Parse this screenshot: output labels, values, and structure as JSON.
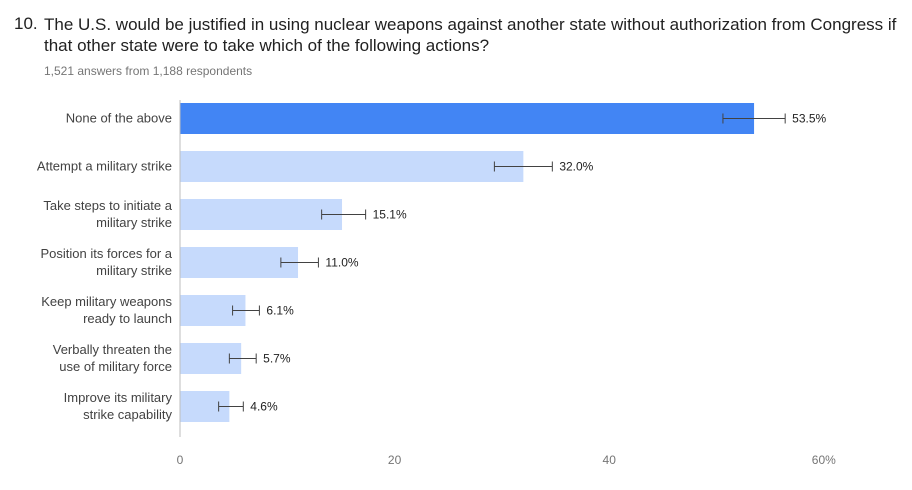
{
  "question": {
    "number": "10.",
    "title": "The U.S. would be justified in using nuclear weapons against another state without authorization from Congress if that other state were to take which of the following actions?",
    "meta": "1,521 answers from 1,188 respondents"
  },
  "colors": {
    "highlight": "#4285f4",
    "bar": "#c6dafc",
    "axis": "#bdbdbd"
  },
  "chart_data": {
    "type": "bar",
    "orientation": "horizontal",
    "categories": [
      "None of the above",
      "Attempt a military strike",
      "Take steps to initiate a military strike",
      "Position its forces for a military strike",
      "Keep military weapons ready to launch",
      "Verbally threaten the use of military force",
      "Improve its military strike capability"
    ],
    "category_lines": [
      [
        "None of the above"
      ],
      [
        "Attempt a military strike"
      ],
      [
        "Take steps to initiate a",
        "military strike"
      ],
      [
        "Position its forces for a",
        "military strike"
      ],
      [
        "Keep military weapons",
        "ready to launch"
      ],
      [
        "Verbally threaten the",
        "use of military force"
      ],
      [
        "Improve its military",
        "strike capability"
      ]
    ],
    "values": [
      53.5,
      32.0,
      15.1,
      11.0,
      6.1,
      5.7,
      4.6
    ],
    "value_labels": [
      "53.5%",
      "32.0%",
      "15.1%",
      "11.0%",
      "6.1%",
      "5.7%",
      "4.6%"
    ],
    "error_bars": [
      [
        50.6,
        56.4
      ],
      [
        29.3,
        34.7
      ],
      [
        13.2,
        17.3
      ],
      [
        9.4,
        12.9
      ],
      [
        4.9,
        7.4
      ],
      [
        4.6,
        7.1
      ],
      [
        3.6,
        5.9
      ]
    ],
    "highlight_index": 0,
    "xlim": [
      0,
      60
    ],
    "ticks": [
      0,
      20,
      40,
      60
    ],
    "tick_labels": [
      "0",
      "20",
      "40",
      "60%"
    ],
    "grid": false
  }
}
